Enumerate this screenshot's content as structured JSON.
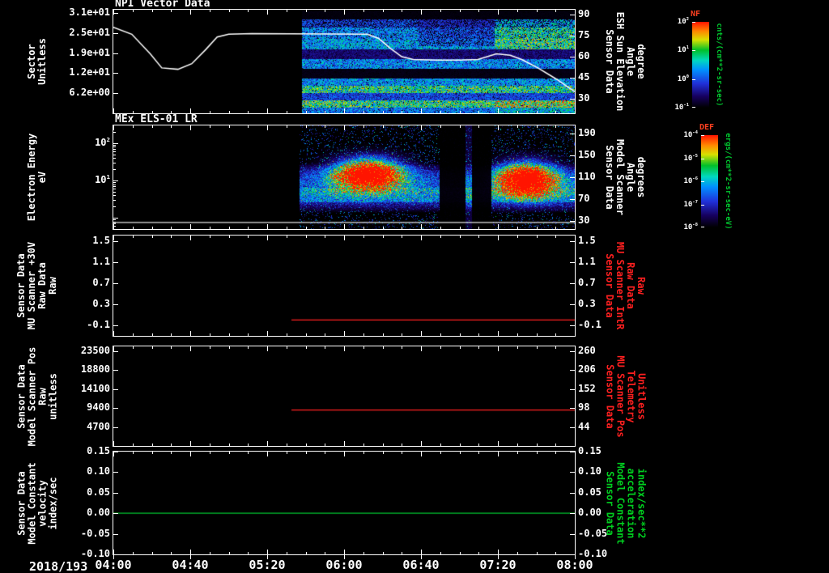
{
  "figure": {
    "bg": "#000000"
  },
  "time_axis": {
    "date_label": "2018/193",
    "tick_labels": [
      "04:00",
      "04:40",
      "05:20",
      "06:00",
      "06:40",
      "07:20",
      "08:00"
    ],
    "minor_divisions": 4
  },
  "palette": [
    [
      0.0,
      "#000000"
    ],
    [
      0.13,
      "#16005e"
    ],
    [
      0.28,
      "#2030d8"
    ],
    [
      0.44,
      "#0090ff"
    ],
    [
      0.55,
      "#00d8c0"
    ],
    [
      0.67,
      "#00c02a"
    ],
    [
      0.79,
      "#d8e000"
    ],
    [
      0.89,
      "#ff8800"
    ],
    [
      1.0,
      "#ff1400"
    ]
  ],
  "chart_data": [
    {
      "id": "npi-vector",
      "type": "heatmap",
      "title": "NPI Vector Data",
      "left_axis": {
        "title_lines": [
          "Sector",
          "Unitless"
        ],
        "color": "#ffffff",
        "range": [
          0,
          32
        ],
        "ticks": [
          {
            "v": 31,
            "label": "3.1e+01"
          },
          {
            "v": 24.8,
            "label": "2.5e+01"
          },
          {
            "v": 18.6,
            "label": "1.9e+01"
          },
          {
            "v": 12.4,
            "label": "1.2e+01"
          },
          {
            "v": 6.2,
            "label": "6.2e+00"
          }
        ]
      },
      "right_axis": {
        "title_lines": [
          "Sensor Data",
          "ESH Sun Elevation",
          "Angle",
          "degree"
        ],
        "color": "#ffffff",
        "range": [
          19.6,
          93.5
        ],
        "ticks": [
          {
            "v": 90,
            "label": "90"
          },
          {
            "v": 75,
            "label": "75"
          },
          {
            "v": 60,
            "label": "60"
          },
          {
            "v": 45,
            "label": "45"
          },
          {
            "v": 30,
            "label": "30"
          }
        ]
      },
      "spectrogram": {
        "x_range": [
          0.408,
          1.0
        ],
        "rows": [
          {
            "y": [
              0.0,
              0.09
            ],
            "i": 0.02
          },
          {
            "y": [
              0.09,
              0.17
            ],
            "i": 0.3,
            "speckle": 0.35
          },
          {
            "y": [
              0.17,
              0.28
            ],
            "i": 0.4,
            "speckle": 0.15
          },
          {
            "y": [
              0.28,
              0.38
            ],
            "i": 0.44
          },
          {
            "y": [
              0.38,
              0.47
            ],
            "i": 0.15
          },
          {
            "y": [
              0.47,
              0.57
            ],
            "i": 0.4
          },
          {
            "y": [
              0.57,
              0.66
            ],
            "i": 0.03
          },
          {
            "y": [
              0.66,
              0.73
            ],
            "i": 0.42
          },
          {
            "y": [
              0.73,
              0.8
            ],
            "i": 0.58
          },
          {
            "y": [
              0.8,
              0.87
            ],
            "i": 0.3
          },
          {
            "y": [
              0.87,
              0.94
            ],
            "i": 0.6
          },
          {
            "y": [
              0.94,
              1.0
            ],
            "i": 0.38
          }
        ],
        "modifiers": [
          {
            "x": [
              0.825,
              1.0
            ],
            "y": [
              0.09,
              0.38
            ],
            "add": 0.16
          },
          {
            "x": [
              0.66,
              0.825
            ],
            "y": [
              0.09,
              0.35
            ],
            "mul": 0.8,
            "speckle": 0.3
          },
          {
            "x": [
              0.825,
              1.0
            ],
            "y": [
              0.87,
              1.0
            ],
            "add": 0.1
          }
        ]
      },
      "overlay_line": {
        "axis": "right",
        "color": "#ffffff",
        "width": 1.5,
        "points": [
          [
            0,
            81
          ],
          [
            0.04,
            76
          ],
          [
            0.08,
            62
          ],
          [
            0.105,
            52
          ],
          [
            0.14,
            51
          ],
          [
            0.17,
            55
          ],
          [
            0.2,
            65
          ],
          [
            0.225,
            74
          ],
          [
            0.25,
            76
          ],
          [
            0.3,
            76.5
          ],
          [
            0.55,
            76
          ],
          [
            0.575,
            73
          ],
          [
            0.6,
            66
          ],
          [
            0.625,
            60
          ],
          [
            0.65,
            58
          ],
          [
            0.7,
            57.5
          ],
          [
            0.75,
            57.5
          ],
          [
            0.79,
            58
          ],
          [
            0.83,
            62
          ],
          [
            0.86,
            61
          ],
          [
            0.885,
            58
          ],
          [
            0.92,
            52
          ],
          [
            0.96,
            44
          ],
          [
            1.0,
            35
          ]
        ]
      }
    },
    {
      "id": "mex-els",
      "type": "heatmap",
      "title": "MEx ELS-01 LR",
      "left_axis": {
        "title_lines": [
          "Electron Energy",
          "eV"
        ],
        "color": "#ffffff",
        "log": true,
        "range": [
          0.5,
          300
        ],
        "ticks": [
          {
            "v": 100,
            "label": "10^2"
          },
          {
            "v": 10,
            "label": "10^1"
          }
        ]
      },
      "right_axis": {
        "title_lines": [
          "Sensor Data",
          "Model Scanner",
          "Angle",
          "degrees"
        ],
        "color": "#ffffff",
        "range": [
          15,
          205
        ],
        "ticks": [
          {
            "v": 190,
            "label": "190"
          },
          {
            "v": 150,
            "label": "150"
          },
          {
            "v": 110,
            "label": "110"
          },
          {
            "v": 70,
            "label": "70"
          },
          {
            "v": 30,
            "label": "30"
          }
        ]
      },
      "spectrogram": {
        "x_range": [
          0.402,
          1.0
        ],
        "speckle": {
          "density": 0.1,
          "i": 0.3
        },
        "band": {
          "y": [
            0.36,
            0.84
          ],
          "center": 0.6,
          "i": 0.34
        },
        "hband": {
          "y": [
            0.6,
            0.74
          ],
          "i": 0.15
        },
        "blobs": [
          {
            "cx": 0.553,
            "cy": 0.47,
            "rx": 0.085,
            "ry": 0.17,
            "peak": 1.6
          },
          {
            "cx": 0.895,
            "cy": 0.52,
            "rx": 0.075,
            "ry": 0.18,
            "peak": 1.6
          }
        ],
        "gap": {
          "x": [
            0.707,
            0.818
          ]
        },
        "streak": {
          "x": [
            0.763,
            0.776
          ]
        }
      },
      "lines": [
        {
          "axis": "left",
          "v": 0.75,
          "x": [
            0.0,
            1.0
          ],
          "color": "#e0e0e0",
          "width": 1.2
        }
      ]
    },
    {
      "id": "mu-scanner-30v",
      "type": "line",
      "title": "",
      "left_axis": {
        "title_lines": [
          "Sensor Data",
          "MU Scanner +30V",
          "Raw Data",
          "Raw"
        ],
        "color": "#ffffff",
        "range": [
          -0.3,
          1.6
        ],
        "ticks": [
          {
            "v": 1.5,
            "label": "1.5"
          },
          {
            "v": 1.1,
            "label": "1.1"
          },
          {
            "v": 0.7,
            "label": "0.7"
          },
          {
            "v": 0.3,
            "label": "0.3"
          },
          {
            "v": -0.1,
            "label": "-0.1"
          }
        ]
      },
      "right_axis": {
        "title_lines": [
          "Sensor Data",
          "MU Scanner IntR",
          "Raw Data",
          "Raw"
        ],
        "color": "#ff2020",
        "range": [
          -0.3,
          1.6
        ],
        "ticks": [
          {
            "v": 1.5,
            "label": "1.5"
          },
          {
            "v": 1.1,
            "label": "1.1"
          },
          {
            "v": 0.7,
            "label": "0.7"
          },
          {
            "v": 0.3,
            "label": "0.3"
          },
          {
            "v": -0.1,
            "label": "-0.1"
          }
        ]
      },
      "lines": [
        {
          "axis": "left",
          "v": 0.0,
          "x": [
            0.386,
            1.0
          ],
          "color": "#ff2020",
          "width": 1.2
        }
      ]
    },
    {
      "id": "scanner-pos",
      "type": "line",
      "title": "",
      "left_axis": {
        "title_lines": [
          "Sensor Data",
          "Model Scanner Pos",
          "Raw",
          "unitless"
        ],
        "color": "#ffffff",
        "range": [
          0,
          24700
        ],
        "ticks": [
          {
            "v": 23500,
            "label": "23500"
          },
          {
            "v": 18800,
            "label": "18800"
          },
          {
            "v": 14100,
            "label": "14100"
          },
          {
            "v": 9400,
            "label": "9400"
          },
          {
            "v": 4700,
            "label": "4700"
          }
        ]
      },
      "right_axis": {
        "title_lines": [
          "Sensor Data",
          "MU Scanner Pos",
          "Telemetry",
          "Unitless"
        ],
        "color": "#ff2020",
        "range": [
          -10,
          273.8
        ],
        "ticks": [
          {
            "v": 260,
            "label": "260"
          },
          {
            "v": 206,
            "label": "206"
          },
          {
            "v": 152,
            "label": "152"
          },
          {
            "v": 98,
            "label": "98"
          },
          {
            "v": 44,
            "label": "44"
          }
        ]
      },
      "lines": [
        {
          "axis": "left",
          "v": 8900,
          "x": [
            0.386,
            1.0
          ],
          "color": "#ff2020",
          "width": 1.2
        }
      ]
    },
    {
      "id": "model-constant",
      "type": "line",
      "title": "",
      "left_axis": {
        "title_lines": [
          "Sensor Data",
          "Model Constant",
          "velocity",
          "index/sec"
        ],
        "color": "#ffffff",
        "range": [
          -0.1,
          0.15
        ],
        "ticks": [
          {
            "v": 0.15,
            "label": "0.15"
          },
          {
            "v": 0.1,
            "label": "0.10"
          },
          {
            "v": 0.05,
            "label": "0.05"
          },
          {
            "v": 0.0,
            "label": "0.00"
          },
          {
            "v": -0.05,
            "label": "-0.05"
          },
          {
            "v": -0.1,
            "label": "-0.10"
          }
        ]
      },
      "right_axis": {
        "title_lines": [
          "Sensor Data",
          "Model Constant",
          "acceleration",
          "index/sec**2"
        ],
        "color": "#00d020",
        "range": [
          -0.1,
          0.15
        ],
        "ticks": [
          {
            "v": 0.15,
            "label": "0.15"
          },
          {
            "v": 0.1,
            "label": "0.10"
          },
          {
            "v": 0.05,
            "label": "0.05"
          },
          {
            "v": 0.0,
            "label": "0.00"
          },
          {
            "v": -0.05,
            "label": "-0.05"
          },
          {
            "v": -0.1,
            "label": "-0.10"
          }
        ]
      },
      "lines": [
        {
          "axis": "left",
          "v": 0.0,
          "x": [
            0.0,
            1.0
          ],
          "color": "#00c832",
          "width": 1.2
        }
      ]
    }
  ],
  "colorbars": [
    {
      "id": "nf",
      "label": "NF",
      "label_color": "#ff4020",
      "units": "cnts/(cm**2-sr-sec)",
      "units_color": "#00cc30",
      "tick_labels": [
        "10^2",
        "10^1",
        "10^0",
        "10^-1"
      ]
    },
    {
      "id": "def",
      "label": "DEF",
      "label_color": "#ff4020",
      "units": "ergs/(cm**2-sr-sec-eV)",
      "units_color": "#00cc30",
      "tick_labels": [
        "10^-4",
        "10^-5",
        "10^-6",
        "10^-7",
        "10^-8"
      ]
    }
  ]
}
